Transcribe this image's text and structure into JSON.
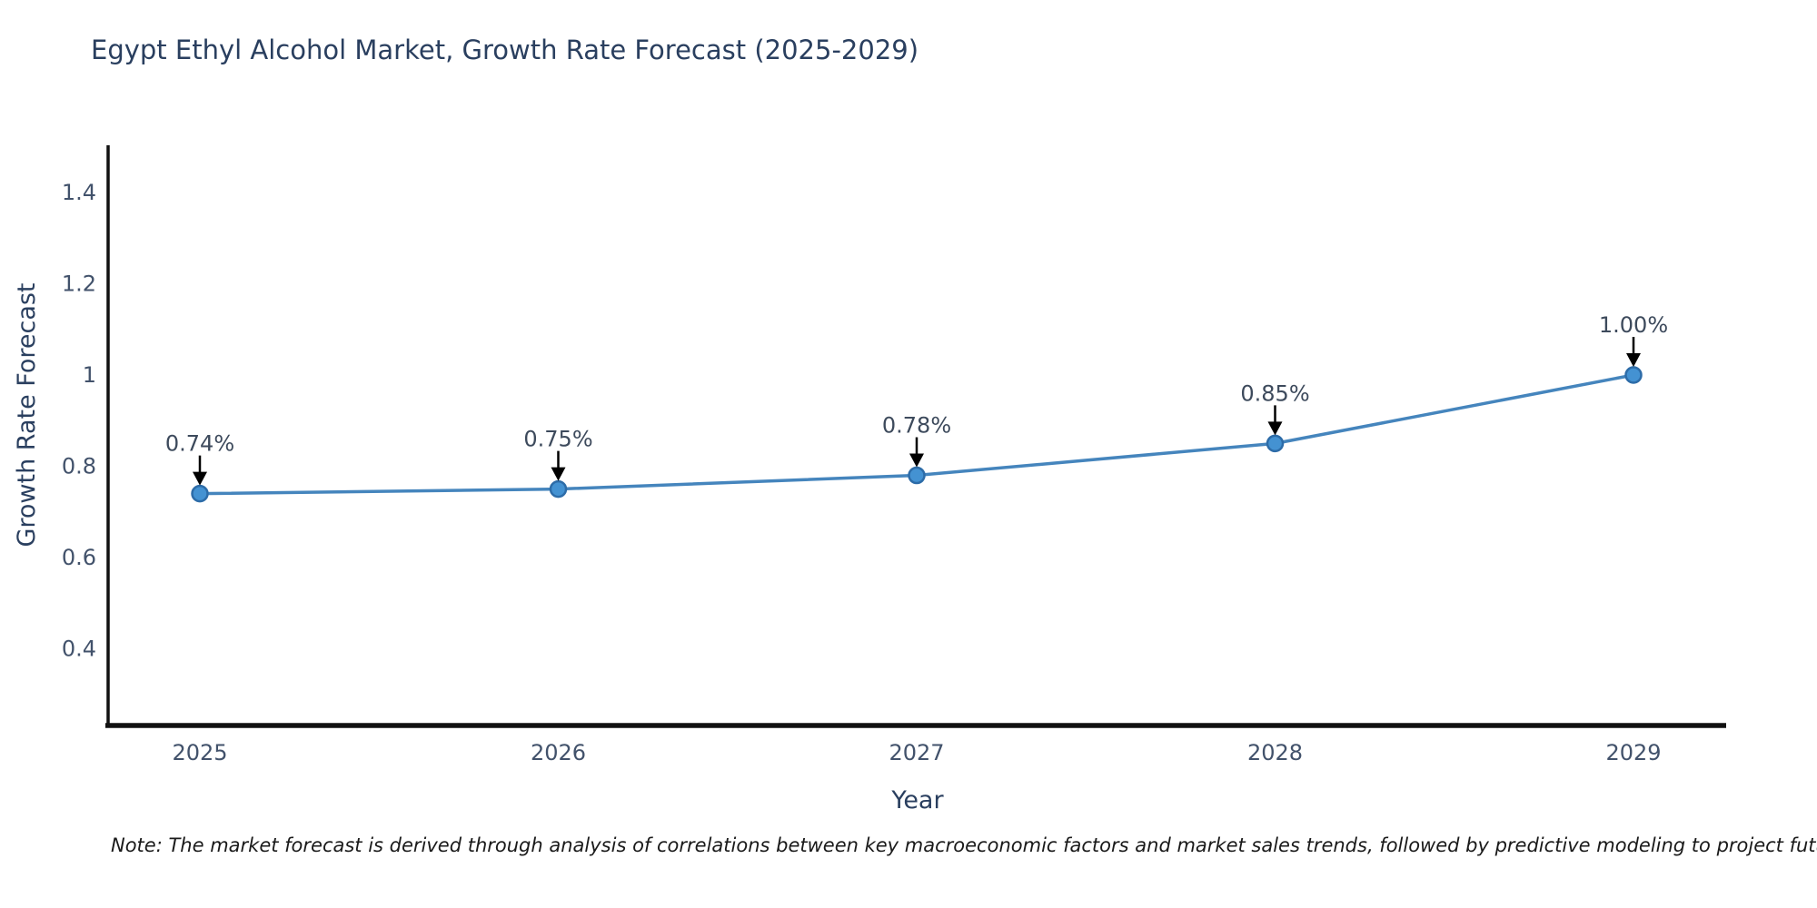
{
  "title": "Egypt Ethyl Alcohol Market, Growth Rate Forecast (2025-2029)",
  "note": "Note: The market forecast is derived through analysis of correlations between key macroeconomic factors and market sales trends, followed by predictive modeling to project future sales",
  "chart_data": {
    "type": "line",
    "title": "Egypt Ethyl Alcohol Market, Growth Rate Forecast (2025-2029)",
    "xlabel": "Year",
    "ylabel": "Growth Rate Forecast",
    "categories": [
      "2025",
      "2026",
      "2027",
      "2028",
      "2029"
    ],
    "series": [
      {
        "name": "Growth Rate Forecast",
        "values": [
          0.74,
          0.75,
          0.78,
          0.85,
          1.0
        ],
        "point_labels": [
          "0.74%",
          "0.75%",
          "0.78%",
          "0.85%",
          "1.00%"
        ]
      }
    ],
    "ylim": [
      0.22,
      1.5
    ],
    "yticks": [
      0.4,
      0.6,
      0.8,
      1,
      1.2,
      1.4
    ],
    "ytick_labels": [
      "0.4",
      "0.6",
      "0.8",
      "1",
      "1.2",
      "1.4"
    ],
    "grid": false,
    "legend": "none",
    "annotation_arrows": true
  },
  "colors": {
    "line": "#4585bd",
    "marker_fill": "#4492d2",
    "marker_edge": "#2d6ca8",
    "axis_line": "#111111",
    "title_text": "#2a3f5f",
    "tick_text": "#42526b",
    "axis_title_text": "#2a3f5f",
    "annotation_text": "#3d4a5c",
    "arrow": "#000000",
    "background": "#ffffff"
  }
}
